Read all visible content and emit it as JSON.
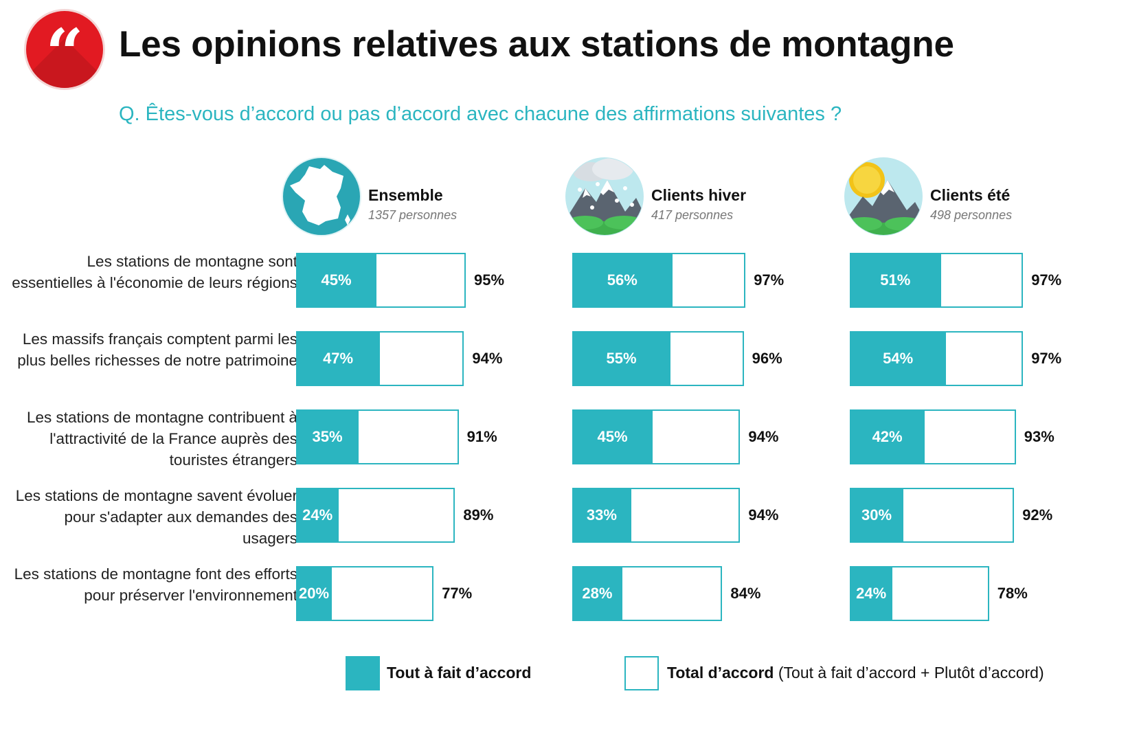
{
  "title": "Les opinions relatives aux stations de montagne",
  "question": "Q. Êtes-vous d’accord ou pas d’accord avec chacune des affirmations suivantes ?",
  "icons": {
    "badge": "quote-icon",
    "ensemble": "france-map-icon",
    "hiver": "snowy-mountain-icon",
    "ete": "sunny-mountain-icon"
  },
  "colors": {
    "accent": "#2bb5c0",
    "badge": "#e21a22"
  },
  "chart_data": {
    "type": "bar",
    "orientation": "horizontal",
    "grouped_panels": true,
    "categories": [
      "Les stations de montagne sont essentielles à l'économie de leurs régions",
      "Les massifs français comptent parmi les plus belles richesses de notre patrimoine",
      "Les stations de montagne contribuent à l'attractivité de la France auprès des touristes étrangers",
      "Les stations de montagne savent évoluer pour s'adapter aux demandes des usagers",
      "Les stations de montagne font des efforts pour préserver l'environnement"
    ],
    "groups": [
      {
        "name": "Ensemble",
        "sample": "1357 personnes",
        "tout_a_fait": [
          45,
          47,
          35,
          24,
          20
        ],
        "total": [
          95,
          94,
          91,
          89,
          77
        ]
      },
      {
        "name": "Clients hiver",
        "sample": "417 personnes",
        "tout_a_fait": [
          56,
          55,
          45,
          33,
          28
        ],
        "total": [
          97,
          96,
          94,
          94,
          84
        ]
      },
      {
        "name": "Clients été",
        "sample": "498 personnes",
        "tout_a_fait": [
          51,
          54,
          42,
          30,
          24
        ],
        "total": [
          97,
          97,
          93,
          92,
          78
        ]
      }
    ],
    "series": [
      {
        "name": "Tout à fait d’accord"
      },
      {
        "name": "Total d’accord",
        "detail": "(Tout à fait d’accord + Plutôt d’accord)"
      }
    ],
    "value_suffix": "%",
    "xlim": [
      0,
      100
    ],
    "legend_position": "bottom"
  }
}
